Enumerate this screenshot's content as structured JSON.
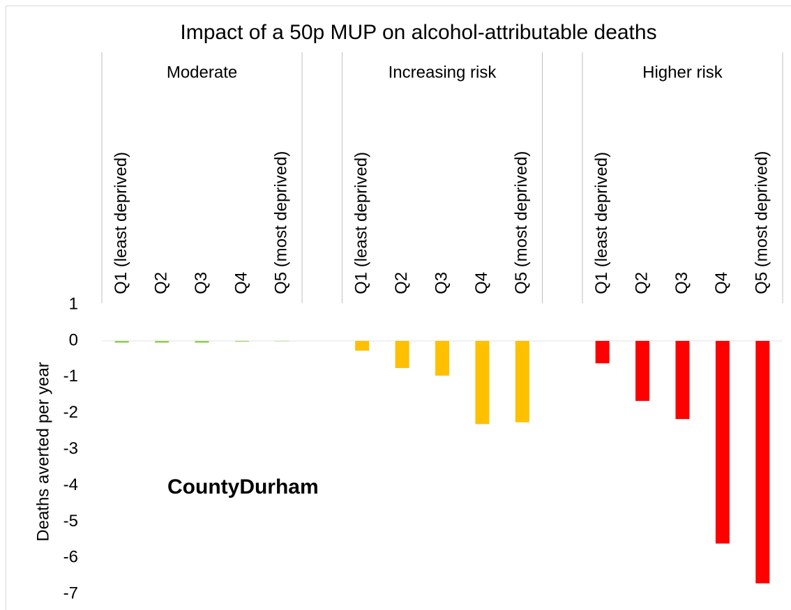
{
  "chart_data": {
    "type": "bar",
    "title": "Impact of a 50p MUP on alcohol-attributable  deaths",
    "y_label": "Deaths averted per year",
    "annotation": "CountyDurham",
    "groups": [
      {
        "name": "Moderate",
        "color": "#92d050"
      },
      {
        "name": "Increasing risk",
        "color": "#ffc000"
      },
      {
        "name": "Higher risk",
        "color": "#ff0000"
      }
    ],
    "categories": [
      "Q1  (least deprived)",
      "Q2",
      "Q3",
      "Q4",
      "Q5 (most deprived)",
      null,
      "Q1  (least deprived)",
      "Q2",
      "Q3",
      "Q4",
      "Q5 (most deprived)",
      null,
      "Q1  (least deprived)",
      "Q2",
      "Q3",
      "Q4",
      "Q5 (most deprived)"
    ],
    "values": [
      -0.05,
      -0.05,
      -0.05,
      -0.02,
      -0.01,
      null,
      -0.27,
      -0.75,
      -0.96,
      -2.3,
      -2.25,
      null,
      -0.62,
      -1.66,
      -2.16,
      -5.6,
      -6.7
    ],
    "ylim": [
      -7,
      1
    ],
    "yticks": [
      -7,
      -6,
      -5,
      -4,
      -3,
      -2,
      -1,
      0,
      1
    ]
  }
}
